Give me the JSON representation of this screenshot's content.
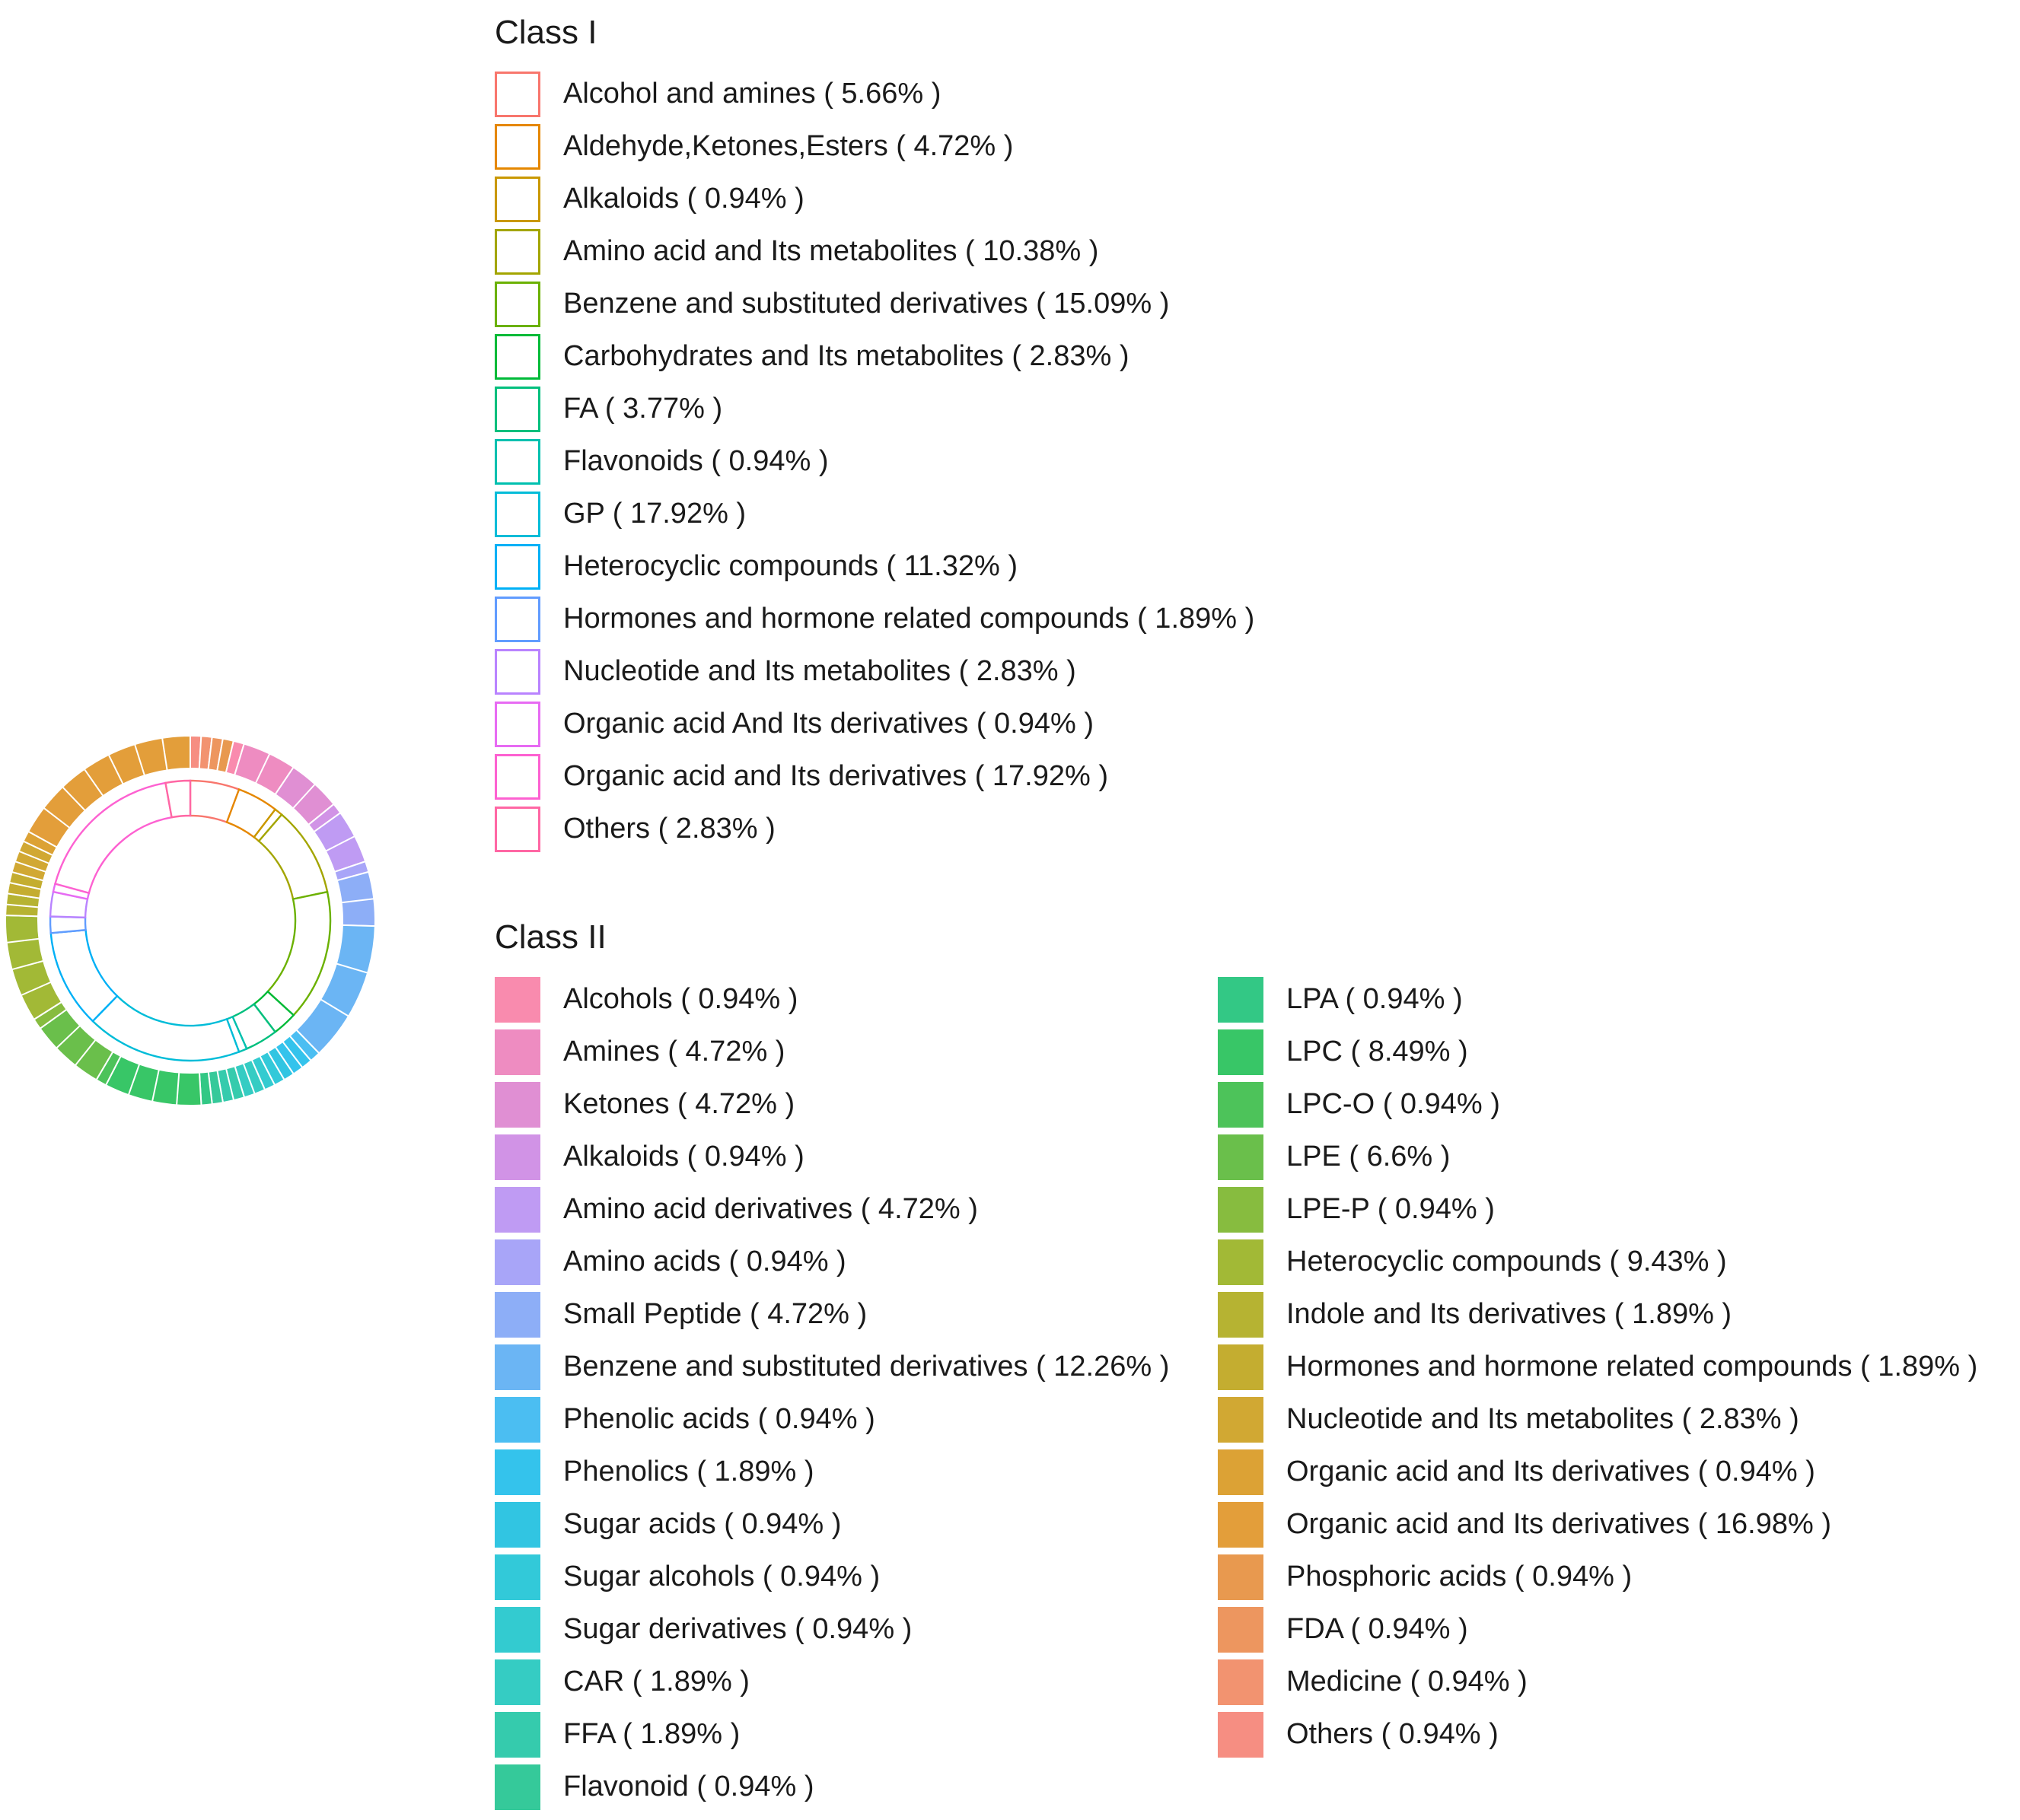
{
  "chart_data": {
    "type": "sunburst",
    "legend_position": "right",
    "class1": {
      "title": "Class I",
      "items": [
        {
          "name": "Alcohol and amines",
          "percent": 5.66,
          "label": "Alcohol and amines ( 5.66% )",
          "color": "#F8766D"
        },
        {
          "name": "Aldehyde,Ketones,Esters",
          "percent": 4.72,
          "label": "Aldehyde,Ketones,Esters ( 4.72% )",
          "color": "#E58700"
        },
        {
          "name": "Alkaloids",
          "percent": 0.94,
          "label": "Alkaloids ( 0.94% )",
          "color": "#C99800"
        },
        {
          "name": "Amino acid and Its metabolites",
          "percent": 10.38,
          "label": "Amino acid and Its metabolites ( 10.38% )",
          "color": "#A3A500"
        },
        {
          "name": "Benzene and substituted derivatives",
          "percent": 15.09,
          "label": "Benzene and substituted derivatives ( 15.09% )",
          "color": "#6BB100"
        },
        {
          "name": "Carbohydrates and Its metabolites",
          "percent": 2.83,
          "label": "Carbohydrates and Its metabolites ( 2.83% )",
          "color": "#00BA38"
        },
        {
          "name": "FA",
          "percent": 3.77,
          "label": "FA ( 3.77% )",
          "color": "#00BF7D"
        },
        {
          "name": "Flavonoids",
          "percent": 0.94,
          "label": "Flavonoids ( 0.94% )",
          "color": "#00C0AF"
        },
        {
          "name": "GP",
          "percent": 17.92,
          "label": "GP ( 17.92% )",
          "color": "#00BCD8"
        },
        {
          "name": "Heterocyclic compounds",
          "percent": 11.32,
          "label": "Heterocyclic compounds ( 11.32% )",
          "color": "#00B0F6"
        },
        {
          "name": "Hormones and hormone related compounds",
          "percent": 1.89,
          "label": "Hormones and hormone related compounds ( 1.89% )",
          "color": "#619CFF"
        },
        {
          "name": "Nucleotide and Its metabolites",
          "percent": 2.83,
          "label": "Nucleotide and Its metabolites ( 2.83% )",
          "color": "#B983FF"
        },
        {
          "name": "Organic acid And Its derivatives",
          "percent": 0.94,
          "label": "Organic acid And Its derivatives ( 0.94% )",
          "color": "#E76BF3"
        },
        {
          "name": "Organic acid and Its derivatives",
          "percent": 17.92,
          "label": "Organic acid and Its derivatives ( 17.92% )",
          "color": "#FD61D1"
        },
        {
          "name": "Others",
          "percent": 2.83,
          "label": "Others ( 2.83% )",
          "color": "#FF67A4"
        }
      ]
    },
    "class2": {
      "title": "Class II",
      "columns": [
        [
          {
            "name": "Alcohols",
            "percent": 0.94,
            "label": "Alcohols ( 0.94% )",
            "color": "#F98BAE"
          },
          {
            "name": "Amines",
            "percent": 4.72,
            "label": "Amines ( 4.72% )",
            "color": "#EE8CC1"
          },
          {
            "name": "Ketones",
            "percent": 4.72,
            "label": "Ketones ( 4.72% )",
            "color": "#E08FD3"
          },
          {
            "name": "Alkaloids",
            "percent": 0.94,
            "label": "Alkaloids ( 0.94% )",
            "color": "#D193E6"
          },
          {
            "name": "Amino acid derivatives",
            "percent": 4.72,
            "label": "Amino acid derivatives ( 4.72% )",
            "color": "#BF9BF3"
          },
          {
            "name": "Amino acids",
            "percent": 0.94,
            "label": "Amino acids ( 0.94% )",
            "color": "#A8A5F8"
          },
          {
            "name": "Small Peptide",
            "percent": 4.72,
            "label": "Small Peptide ( 4.72% )",
            "color": "#8DAEF7"
          },
          {
            "name": "Benzene and substituted derivatives",
            "percent": 12.26,
            "label": "Benzene and substituted derivatives ( 12.26% )",
            "color": "#6BB5F4"
          },
          {
            "name": "Phenolic acids",
            "percent": 0.94,
            "label": "Phenolic acids ( 0.94% )",
            "color": "#4BBEF2"
          },
          {
            "name": "Phenolics",
            "percent": 1.89,
            "label": "Phenolics ( 1.89% )",
            "color": "#34C3EC"
          },
          {
            "name": "Sugar acids",
            "percent": 0.94,
            "label": "Sugar acids ( 0.94% )",
            "color": "#31C5E2"
          },
          {
            "name": "Sugar alcohols",
            "percent": 0.94,
            "label": "Sugar alcohols ( 0.94% )",
            "color": "#32C9D9"
          },
          {
            "name": "Sugar derivatives",
            "percent": 0.94,
            "label": "Sugar derivatives ( 0.94% )",
            "color": "#33CBD0"
          },
          {
            "name": "CAR",
            "percent": 1.89,
            "label": "CAR ( 1.89% )",
            "color": "#35CCC3"
          },
          {
            "name": "FFA",
            "percent": 1.89,
            "label": "FFA ( 1.89% )",
            "color": "#35CBAD"
          },
          {
            "name": "Flavonoid",
            "percent": 0.94,
            "label": "Flavonoid ( 0.94% )",
            "color": "#35C99A"
          }
        ],
        [
          {
            "name": "LPA",
            "percent": 0.94,
            "label": "LPA ( 0.94% )",
            "color": "#33C885"
          },
          {
            "name": "LPC",
            "percent": 8.49,
            "label": "LPC ( 8.49% )",
            "color": "#38C667"
          },
          {
            "name": "LPC-O",
            "percent": 0.94,
            "label": "LPC-O ( 0.94% )",
            "color": "#4DC35A"
          },
          {
            "name": "LPE",
            "percent": 6.6,
            "label": "LPE ( 6.6% )",
            "color": "#6ABF4B"
          },
          {
            "name": "LPE-P",
            "percent": 0.94,
            "label": "LPE-P ( 0.94% )",
            "color": "#87BC3F"
          },
          {
            "name": "Heterocyclic compounds",
            "percent": 9.43,
            "label": "Heterocyclic compounds ( 9.43% )",
            "color": "#A2B936"
          },
          {
            "name": "Indole and Its derivatives",
            "percent": 1.89,
            "label": "Indole and Its derivatives ( 1.89% )",
            "color": "#B6B332"
          },
          {
            "name": "Hormones and hormone related compounds",
            "percent": 1.89,
            "label": "Hormones and hormone related compounds ( 1.89% )",
            "color": "#C4AD30"
          },
          {
            "name": "Nucleotide and Its metabolites",
            "percent": 2.83,
            "label": "Nucleotide and Its metabolites ( 2.83% )",
            "color": "#D1A833"
          },
          {
            "name": "Organic acid and  Its derivatives",
            "percent": 0.94,
            "label": "Organic acid and  Its derivatives ( 0.94% )",
            "color": "#DCA235"
          },
          {
            "name": "Organic acid and Its derivatives",
            "percent": 16.98,
            "label": "Organic acid and Its derivatives ( 16.98% )",
            "color": "#E39E3A"
          },
          {
            "name": "Phosphoric acids",
            "percent": 0.94,
            "label": "Phosphoric acids ( 0.94% )",
            "color": "#E8994F"
          },
          {
            "name": "FDA",
            "percent": 0.94,
            "label": "FDA ( 0.94% )",
            "color": "#ED965F"
          },
          {
            "name": "Medicine",
            "percent": 0.94,
            "label": "Medicine ( 0.94% )",
            "color": "#F29370"
          },
          {
            "name": "Others",
            "percent": 0.94,
            "label": "Others ( 0.94% )",
            "color": "#F68E82"
          }
        ]
      ]
    },
    "outer_ring_order": [
      "Others",
      "Medicine",
      "FDA",
      "Phosphoric acids",
      "Alcohols",
      "Amines",
      "Ketones",
      "Alkaloids",
      "Amino acid derivatives",
      "Amino acids",
      "Small Peptide",
      "Benzene and substituted derivatives",
      "Phenolic acids",
      "Phenolics",
      "Sugar acids",
      "Sugar alcohols",
      "Sugar derivatives",
      "CAR",
      "FFA",
      "Flavonoid",
      "LPA",
      "LPC",
      "LPC-O",
      "LPE",
      "LPE-P",
      "Heterocyclic compounds",
      "Indole and Its derivatives",
      "Hormones and hormone related compounds",
      "Nucleotide and Its metabolites",
      "Organic acid and  Its derivatives",
      "Organic acid and Its derivatives"
    ],
    "outer_ring_dividers": {
      "Amines": 1,
      "Ketones": 1,
      "Amino acid derivatives": 1,
      "Small Peptide": 1,
      "Benzene and substituted derivatives": 2,
      "Phenolics": 1,
      "CAR": 1,
      "FFA": 1,
      "LPC": 3,
      "LPE": 2,
      "Heterocyclic compounds": 3,
      "Indole and Its derivatives": 1,
      "Hormones and hormone related compounds": 1,
      "Nucleotide and Its metabolites": 2,
      "Organic acid and Its derivatives": 6
    },
    "inner_ring_order": [
      "Alcohol and amines",
      "Aldehyde,Ketones,Esters",
      "Alkaloids",
      "Amino acid and Its metabolites",
      "Benzene and substituted derivatives",
      "Carbohydrates and Its metabolites",
      "FA",
      "Flavonoids",
      "GP",
      "Heterocyclic compounds",
      "Hormones and hormone related compounds",
      "Nucleotide and Its metabolites",
      "Organic acid And Its derivatives",
      "Organic acid and Its derivatives",
      "Others"
    ]
  }
}
